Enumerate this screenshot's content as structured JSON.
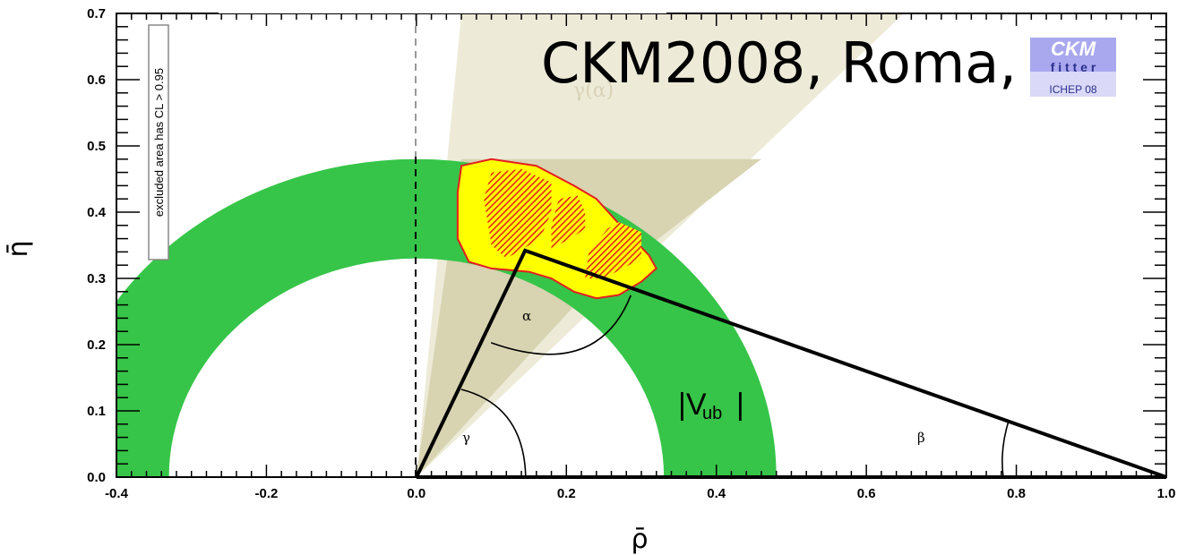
{
  "chart_data": {
    "type": "contour",
    "xlabel": "ρ̄",
    "ylabel": "η̄",
    "xlim": [
      -0.4,
      1.0
    ],
    "ylim": [
      0.0,
      0.7
    ],
    "xticks": [
      "-0.4",
      "-0.2",
      "0.0",
      "0.2",
      "0.4",
      "0.6",
      "0.8",
      "1.0"
    ],
    "yticks": [
      "0.0",
      "0.1",
      "0.2",
      "0.3",
      "0.4",
      "0.5",
      "0.6",
      "0.7"
    ],
    "watermark": "CKM2008, Roma, I",
    "note": "excluded area has CL > 0.95",
    "logo": {
      "name": "CKM",
      "letters": "f  i  t  t  e  r",
      "sub": "ICHEP 08"
    },
    "labels": {
      "gamma_alpha": "γ(α)",
      "alpha": "α",
      "gamma": "γ",
      "beta": "β",
      "vub": "|V",
      "vub_sub": "ub",
      "vub_end": "|"
    },
    "apex": {
      "rho": 0.145,
      "eta": 0.342
    },
    "vub_ring": {
      "r_inner": 0.33,
      "r_outer": 0.48
    },
    "colors": {
      "vub": "#36c548",
      "cone": "#d8d3b1",
      "cone_light": "#edebd8",
      "fit_yellow": "#ffff00",
      "fit_red": "#e51e1e",
      "logo_bg": "#a9a8ee"
    }
  }
}
